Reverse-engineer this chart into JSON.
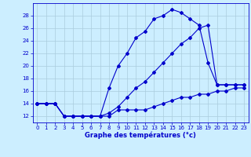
{
  "xlabel": "Graphe des températures (°c)",
  "bg_color": "#cceeff",
  "line_color": "#0000cc",
  "grid_color": "#aaccdd",
  "series1_x": [
    0,
    1,
    2,
    3,
    4,
    5,
    6,
    7,
    8,
    9,
    10,
    11,
    12,
    13,
    14,
    15,
    16,
    17,
    18,
    19,
    20,
    21,
    22,
    23
  ],
  "series1_y": [
    14,
    14,
    14,
    12,
    12,
    12,
    12,
    12,
    12,
    13,
    13,
    13,
    13,
    13.5,
    14,
    14.5,
    15,
    15,
    15.5,
    15.5,
    16,
    16,
    16.5,
    16.5
  ],
  "series2_x": [
    0,
    1,
    2,
    3,
    4,
    5,
    6,
    7,
    8,
    9,
    10,
    11,
    12,
    13,
    14,
    15,
    16,
    17,
    18,
    19,
    20,
    21,
    22,
    23
  ],
  "series2_y": [
    14,
    14,
    14,
    12,
    12,
    12,
    12,
    12,
    16.5,
    20,
    22,
    24.5,
    25.5,
    27.5,
    28,
    29,
    28.5,
    27.5,
    26.5,
    20.5,
    17,
    17,
    17,
    17
  ],
  "series3_x": [
    0,
    1,
    2,
    3,
    4,
    5,
    6,
    7,
    8,
    9,
    10,
    11,
    12,
    13,
    14,
    15,
    16,
    17,
    18,
    19,
    20,
    21,
    22,
    23
  ],
  "series3_y": [
    14,
    14,
    14,
    12,
    12,
    12,
    12,
    12,
    12.5,
    13.5,
    15,
    16.5,
    17.5,
    19,
    20.5,
    22,
    23.5,
    24.5,
    26,
    26.5,
    17,
    17,
    17,
    17
  ],
  "xlim": [
    -0.5,
    23.5
  ],
  "ylim": [
    11.0,
    30.0
  ],
  "yticks": [
    12,
    14,
    16,
    18,
    20,
    22,
    24,
    26,
    28
  ],
  "xticks": [
    0,
    1,
    2,
    3,
    4,
    5,
    6,
    7,
    8,
    9,
    10,
    11,
    12,
    13,
    14,
    15,
    16,
    17,
    18,
    19,
    20,
    21,
    22,
    23
  ],
  "xlabel_fontsize": 6.0,
  "tick_fontsize": 5.0,
  "linewidth": 0.8,
  "markersize": 2.0
}
